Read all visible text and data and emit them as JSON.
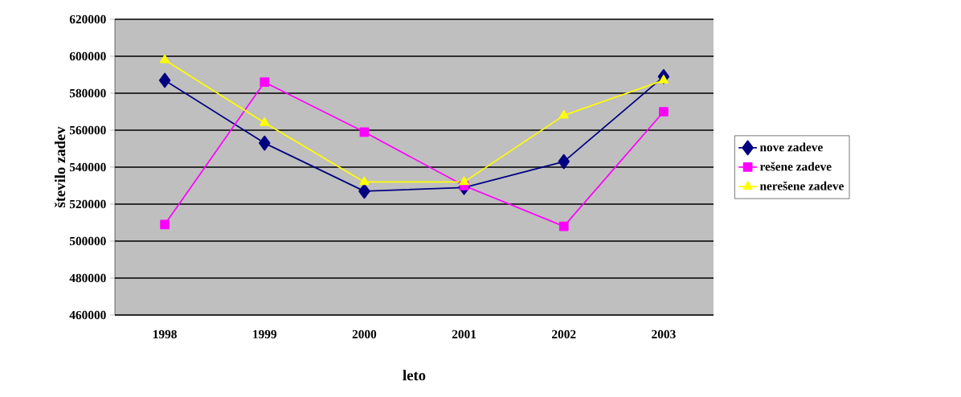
{
  "chart_data": {
    "type": "line",
    "xlabel": "leto",
    "ylabel": "število zadev",
    "categories": [
      "1998",
      "1999",
      "2000",
      "2001",
      "2002",
      "2003"
    ],
    "series": [
      {
        "name": "nove zadeve",
        "color": "#000080",
        "marker": "diamond",
        "values": [
          587000,
          553000,
          527000,
          529000,
          543000,
          589000
        ]
      },
      {
        "name": "rešene zadeve",
        "color": "#ff00ff",
        "marker": "square",
        "values": [
          509000,
          586000,
          559000,
          530000,
          508000,
          570000
        ]
      },
      {
        "name": "nerešene zadeve",
        "color": "#ffff00",
        "marker": "triangle",
        "values": [
          598000,
          564000,
          532000,
          532000,
          568000,
          587000
        ]
      }
    ],
    "ylim": [
      460000,
      620000
    ],
    "yticks": [
      460000,
      480000,
      500000,
      520000,
      540000,
      560000,
      580000,
      600000,
      620000
    ],
    "grid": "y",
    "legend": "right",
    "line_style": "solid"
  }
}
